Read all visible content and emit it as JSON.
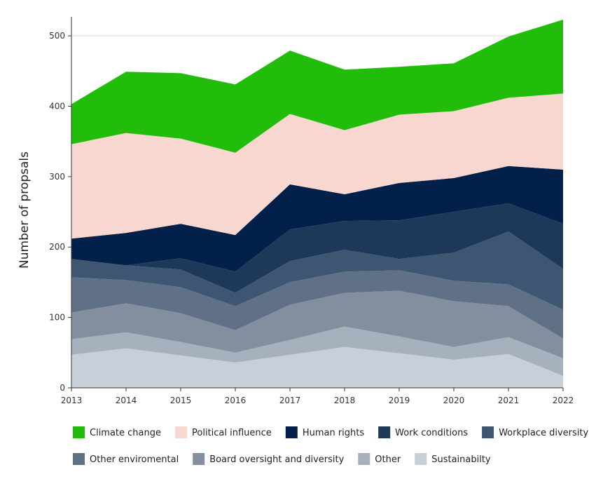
{
  "chart_data": {
    "type": "area",
    "stacked": true,
    "title": "",
    "xlabel": "",
    "ylabel": "Number of propsals",
    "x": [
      2013,
      2014,
      2015,
      2016,
      2017,
      2018,
      2019,
      2020,
      2021,
      2022
    ],
    "ylim": [
      0,
      525
    ],
    "yticks": [
      0,
      100,
      200,
      300,
      400,
      500
    ],
    "grid": "horizontal",
    "legend_position": "bottom",
    "series": [
      {
        "name": "Sustainabilty",
        "color": "#c7d0d8",
        "values": [
          47,
          56,
          46,
          36,
          47,
          58,
          49,
          40,
          48,
          17
        ]
      },
      {
        "name": "Other",
        "color": "#a6b1bd",
        "values": [
          22,
          23,
          19,
          14,
          21,
          29,
          24,
          18,
          24,
          25
        ]
      },
      {
        "name": "Board oversight and diversity",
        "color": "#838f9e",
        "values": [
          38,
          41,
          41,
          32,
          50,
          48,
          65,
          65,
          44,
          28
        ]
      },
      {
        "name": "Other enviromental",
        "color": "#5f7087",
        "values": [
          50,
          33,
          37,
          34,
          32,
          30,
          29,
          29,
          31,
          41
        ]
      },
      {
        "name": "Workplace diversity",
        "color": "#3f5672",
        "values": [
          26,
          21,
          25,
          19,
          30,
          31,
          16,
          40,
          75,
          58
        ]
      },
      {
        "name": "Work conditions",
        "color": "#1d3858",
        "values": [
          0,
          0,
          16,
          30,
          45,
          41,
          55,
          58,
          40,
          64
        ]
      },
      {
        "name": "Human rights",
        "color": "#02204a",
        "values": [
          29,
          46,
          49,
          52,
          64,
          38,
          53,
          48,
          53,
          77
        ]
      },
      {
        "name": "Political influence",
        "color": "#f8d7d0",
        "values": [
          134,
          142,
          121,
          117,
          100,
          91,
          97,
          95,
          97,
          108
        ]
      },
      {
        "name": "Climate change",
        "color": "#22bd0a",
        "values": [
          57,
          87,
          93,
          97,
          90,
          86,
          68,
          68,
          87,
          105
        ]
      }
    ],
    "legend_order": [
      "Climate change",
      "Political influence",
      "Human rights",
      "Work conditions",
      "Workplace diversity",
      "Other enviromental",
      "Board oversight and diversity",
      "Other",
      "Sustainabilty"
    ]
  }
}
